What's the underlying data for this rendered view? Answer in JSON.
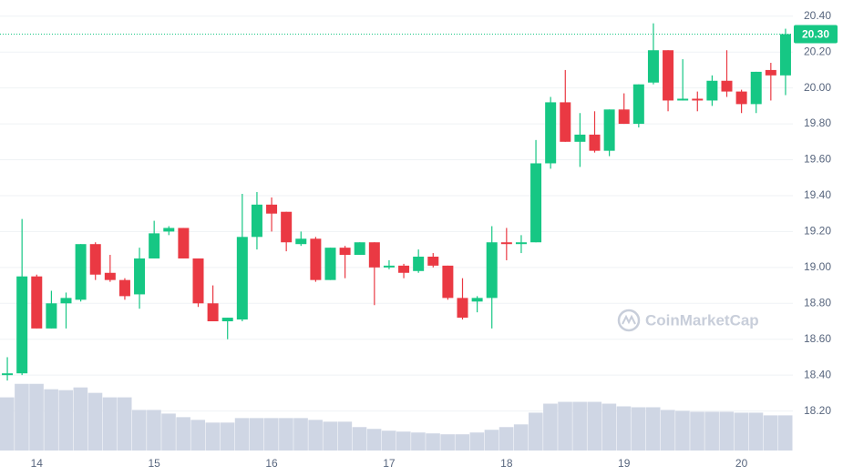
{
  "chart_data": {
    "type": "candlestick",
    "categories": [
      null,
      null,
      "14",
      null,
      null,
      null,
      null,
      null,
      null,
      null,
      "15",
      null,
      null,
      null,
      null,
      null,
      null,
      null,
      "16",
      null,
      null,
      null,
      null,
      null,
      null,
      null,
      "17",
      null,
      null,
      null,
      null,
      null,
      null,
      null,
      "18",
      null,
      null,
      null,
      null,
      null,
      null,
      null,
      "19",
      null,
      null,
      null,
      null,
      null,
      null,
      null,
      "20",
      null,
      null,
      null
    ],
    "open": [
      18.4,
      18.41,
      18.95,
      18.66,
      18.8,
      18.82,
      19.13,
      18.97,
      18.93,
      18.85,
      19.05,
      19.2,
      19.22,
      19.05,
      18.8,
      18.7,
      18.71,
      19.17,
      19.35,
      19.31,
      19.13,
      19.16,
      18.93,
      19.11,
      19.07,
      19.14,
      19.0,
      19.01,
      18.98,
      19.06,
      19.01,
      18.83,
      18.81,
      18.83,
      19.14,
      19.13,
      19.14,
      19.58,
      19.92,
      19.7,
      19.74,
      19.65,
      19.88,
      19.8,
      20.03,
      20.21,
      19.93,
      19.94,
      19.93,
      20.04,
      19.98,
      19.91,
      20.1,
      20.07
    ],
    "high": [
      18.5,
      19.27,
      18.96,
      18.87,
      18.86,
      19.13,
      19.14,
      19.07,
      18.94,
      19.11,
      19.26,
      19.23,
      19.22,
      19.05,
      18.9,
      18.72,
      19.41,
      19.42,
      19.39,
      19.31,
      19.2,
      19.17,
      19.11,
      19.12,
      19.14,
      19.14,
      19.04,
      19.02,
      19.1,
      19.08,
      19.01,
      18.94,
      18.84,
      19.23,
      19.22,
      19.18,
      19.71,
      19.95,
      20.1,
      19.86,
      19.87,
      19.88,
      19.97,
      20.02,
      20.36,
      20.21,
      20.16,
      19.98,
      20.07,
      20.21,
      19.99,
      20.09,
      20.14,
      20.33
    ],
    "low": [
      18.37,
      18.4,
      18.66,
      18.66,
      18.66,
      18.81,
      18.93,
      18.92,
      18.82,
      18.77,
      19.05,
      19.18,
      19.05,
      18.78,
      18.7,
      18.6,
      18.7,
      19.1,
      19.2,
      19.09,
      19.12,
      18.92,
      18.93,
      18.94,
      19.07,
      18.79,
      18.99,
      18.94,
      18.97,
      19.0,
      18.82,
      18.71,
      18.75,
      18.66,
      19.04,
      19.08,
      19.14,
      19.55,
      19.7,
      19.56,
      19.64,
      19.62,
      19.8,
      19.78,
      20.02,
      19.87,
      19.93,
      19.87,
      19.9,
      19.95,
      19.86,
      19.86,
      19.93,
      19.96
    ],
    "close": [
      18.41,
      18.95,
      18.66,
      18.8,
      18.83,
      19.13,
      18.96,
      18.93,
      18.84,
      19.05,
      19.19,
      19.22,
      19.05,
      18.8,
      18.7,
      18.72,
      19.17,
      19.35,
      19.3,
      19.14,
      19.16,
      18.93,
      19.11,
      19.07,
      19.14,
      19.0,
      19.01,
      18.97,
      19.06,
      19.01,
      18.83,
      18.72,
      18.83,
      19.14,
      19.13,
      19.14,
      19.58,
      19.92,
      19.7,
      19.74,
      19.65,
      19.88,
      19.8,
      20.02,
      20.21,
      19.93,
      19.94,
      19.93,
      20.04,
      19.98,
      19.91,
      20.09,
      20.07,
      20.3
    ],
    "up_color": "#16c784",
    "down_color": "#ea3943",
    "volume": {
      "axis": "y2",
      "color": "#cfd6e4",
      "values": [
        59,
        74,
        74,
        68,
        67,
        70,
        64,
        59,
        59,
        45,
        45,
        41,
        37,
        34,
        31,
        31,
        36,
        36,
        36,
        36,
        36,
        34,
        32,
        32,
        26,
        24,
        22,
        21,
        20,
        19,
        18,
        18,
        20,
        23,
        26,
        29,
        42,
        52,
        54,
        54,
        54,
        52,
        49,
        48,
        48,
        45,
        44,
        43,
        43,
        43,
        42,
        42,
        39,
        39
      ]
    },
    "ylim": [
      17.98,
      20.49
    ],
    "yticks": [
      {
        "value": 18.2,
        "label": "18.20"
      },
      {
        "value": 18.4,
        "label": "18.40"
      },
      {
        "value": 18.6,
        "label": "18.60"
      },
      {
        "value": 18.8,
        "label": "18.80"
      },
      {
        "value": 19.0,
        "label": "19.00"
      },
      {
        "value": 19.2,
        "label": "19.20"
      },
      {
        "value": 19.4,
        "label": "19.40"
      },
      {
        "value": 19.6,
        "label": "19.60"
      },
      {
        "value": 19.8,
        "label": "19.80"
      },
      {
        "value": 20.0,
        "label": "20.00"
      },
      {
        "value": 20.2,
        "label": "20.20"
      },
      {
        "value": 20.4,
        "label": "20.40"
      }
    ],
    "y2lim": [
      0,
      500
    ],
    "grid": true,
    "last_price": {
      "value": 20.3,
      "label": "20.30"
    },
    "watermark": "CoinMarketCap"
  }
}
